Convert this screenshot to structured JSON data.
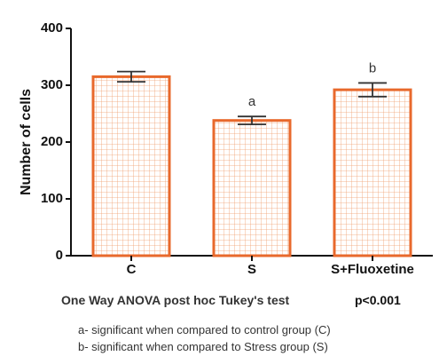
{
  "chart_data": {
    "type": "bar",
    "categories": [
      "C",
      "S",
      "S+Fluoxetine"
    ],
    "values": [
      315,
      238,
      292
    ],
    "errors": [
      9,
      7,
      12
    ],
    "significance": [
      "",
      "a",
      "b"
    ],
    "title": "",
    "xlabel": "",
    "ylabel": "Number of cells",
    "ylim": [
      0,
      400
    ],
    "yticks": [
      0,
      100,
      200,
      300,
      400
    ],
    "grid": false,
    "bar_style": "white fill with orange grid hatch",
    "colors": {
      "bar_edge": "#e8692c",
      "hatch": "#f0a070",
      "axis": "#111111"
    }
  },
  "footer": {
    "test": "One Way ANOVA post hoc Tukey's test",
    "p_value": "p<0.001",
    "notes": [
      "a- significant when compared to control group (C)",
      "b- significant when compared to Stress group (S)"
    ]
  }
}
